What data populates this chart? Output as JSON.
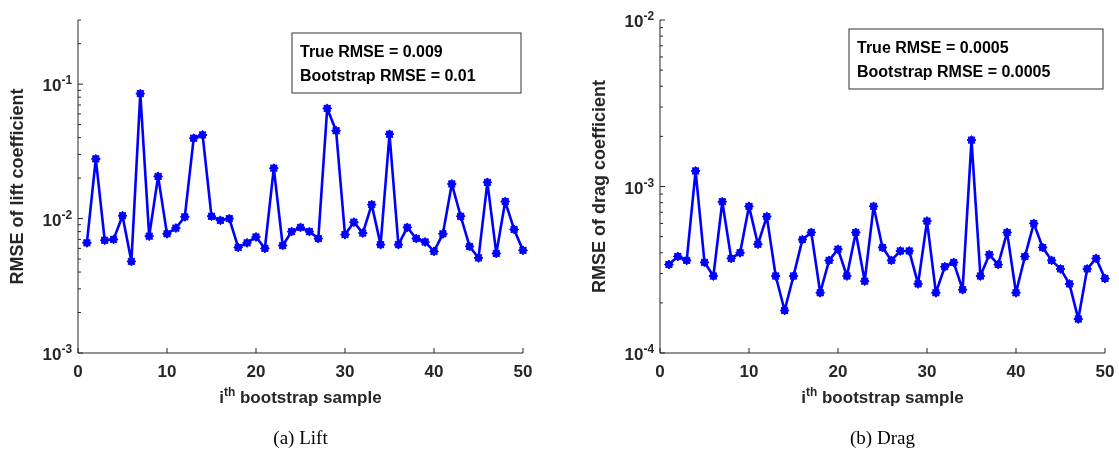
{
  "chart_data": [
    {
      "type": "line",
      "title": "(a) Lift",
      "xlabel": "i$^{th}$ bootstrap sample",
      "ylabel": "RMSE of lift coefficient",
      "log": "y",
      "marker": "star",
      "line_style": "solid",
      "grid": false,
      "annotations": [
        "True RMSE = 0.009",
        "Bootstrap RMSE = 0.01"
      ],
      "xlim": [
        0,
        50
      ],
      "xticks": [
        0,
        10,
        20,
        30,
        40,
        50
      ],
      "ylim": [
        0.001,
        0.3
      ],
      "yticks": [
        {
          "value": 0.001,
          "label": "10$^{-3}$"
        },
        {
          "value": 0.002,
          "label": null
        },
        {
          "value": 0.003,
          "label": null
        },
        {
          "value": 0.004,
          "label": null
        },
        {
          "value": 0.005,
          "label": null
        },
        {
          "value": 0.006,
          "label": null
        },
        {
          "value": 0.007,
          "label": null
        },
        {
          "value": 0.008,
          "label": null
        },
        {
          "value": 0.009,
          "label": null
        },
        {
          "value": 0.01,
          "label": "10$^{-2}$"
        },
        {
          "value": 0.02,
          "label": null
        },
        {
          "value": 0.03,
          "label": null
        },
        {
          "value": 0.04,
          "label": null
        },
        {
          "value": 0.05,
          "label": null
        },
        {
          "value": 0.06,
          "label": null
        },
        {
          "value": 0.07,
          "label": null
        },
        {
          "value": 0.08,
          "label": null
        },
        {
          "value": 0.09,
          "label": null
        },
        {
          "value": 0.1,
          "label": "10$^{-1}$"
        },
        {
          "value": 0.2,
          "label": null
        },
        {
          "value": 0.3,
          "label": null
        }
      ],
      "x": [
        1,
        2,
        3,
        4,
        5,
        6,
        7,
        8,
        9,
        10,
        11,
        12,
        13,
        14,
        15,
        16,
        17,
        18,
        19,
        20,
        21,
        22,
        23,
        24,
        25,
        26,
        27,
        28,
        29,
        30,
        31,
        32,
        33,
        34,
        35,
        36,
        37,
        38,
        39,
        40,
        41,
        42,
        43,
        44,
        45,
        46,
        47,
        48,
        49,
        50
      ],
      "series": [
        {
          "color": "#0000ff",
          "values": [
            0.0066,
            0.0278,
            0.0069,
            0.007,
            0.0105,
            0.0048,
            0.085,
            0.0074,
            0.0206,
            0.0077,
            0.0085,
            0.0103,
            0.0396,
            0.0419,
            0.0104,
            0.0097,
            0.01,
            0.0061,
            0.0066,
            0.0073,
            0.006,
            0.0237,
            0.0063,
            0.008,
            0.0086,
            0.008,
            0.0071,
            0.066,
            0.045,
            0.0076,
            0.0094,
            0.0078,
            0.0127,
            0.0064,
            0.0424,
            0.0064,
            0.0086,
            0.0071,
            0.0067,
            0.0057,
            0.0077,
            0.0181,
            0.0104,
            0.0062,
            0.0051,
            0.0186,
            0.0055,
            0.0134,
            0.0083,
            0.0058
          ]
        }
      ]
    },
    {
      "type": "line",
      "title": "(b) Drag",
      "xlabel": "i$^{th}$ bootstrap sample",
      "ylabel": "RMSE of drag coefficient",
      "log": "y",
      "marker": "star",
      "line_style": "solid",
      "grid": false,
      "annotations": [
        "True RMSE = 0.0005",
        "Bootstrap RMSE = 0.0005"
      ],
      "xlim": [
        0,
        50
      ],
      "xticks": [
        0,
        10,
        20,
        30,
        40,
        50
      ],
      "ylim": [
        0.0001,
        0.01
      ],
      "yticks": [
        {
          "value": 0.0001,
          "label": "10$^{-4}$"
        },
        {
          "value": 0.0002,
          "label": null
        },
        {
          "value": 0.0003,
          "label": null
        },
        {
          "value": 0.0004,
          "label": null
        },
        {
          "value": 0.0005,
          "label": null
        },
        {
          "value": 0.0006,
          "label": null
        },
        {
          "value": 0.0007,
          "label": null
        },
        {
          "value": 0.0008,
          "label": null
        },
        {
          "value": 0.0009,
          "label": null
        },
        {
          "value": 0.001,
          "label": "10$^{-3}$"
        },
        {
          "value": 0.002,
          "label": null
        },
        {
          "value": 0.003,
          "label": null
        },
        {
          "value": 0.004,
          "label": null
        },
        {
          "value": 0.005,
          "label": null
        },
        {
          "value": 0.006,
          "label": null
        },
        {
          "value": 0.007,
          "label": null
        },
        {
          "value": 0.008,
          "label": null
        },
        {
          "value": 0.009,
          "label": null
        },
        {
          "value": 0.01,
          "label": "10$^{-2}$"
        }
      ],
      "x": [
        1,
        2,
        3,
        4,
        5,
        6,
        7,
        8,
        9,
        10,
        11,
        12,
        13,
        14,
        15,
        16,
        17,
        18,
        19,
        20,
        21,
        22,
        23,
        24,
        25,
        26,
        27,
        28,
        29,
        30,
        31,
        32,
        33,
        34,
        35,
        36,
        37,
        38,
        39,
        40,
        41,
        42,
        43,
        44,
        45,
        46,
        47,
        48,
        49,
        50
      ],
      "series": [
        {
          "color": "#0000ff",
          "values": [
            0.00034,
            0.00038,
            0.00036,
            0.00124,
            0.00035,
            0.00029,
            0.00081,
            0.00037,
            0.0004,
            0.00076,
            0.00045,
            0.00066,
            0.00029,
            0.00018,
            0.00029,
            0.00048,
            0.00053,
            0.00023,
            0.00036,
            0.00042,
            0.00029,
            0.00053,
            0.00027,
            0.00076,
            0.00043,
            0.00036,
            0.00041,
            0.00041,
            0.00026,
            0.00062,
            0.00023,
            0.00033,
            0.00035,
            0.00024,
            0.0019,
            0.00029,
            0.00039,
            0.00034,
            0.00053,
            0.00023,
            0.00038,
            0.0006,
            0.00043,
            0.00036,
            0.00032,
            0.00026,
            0.00016,
            0.00032,
            0.00037,
            0.00028
          ]
        }
      ]
    }
  ]
}
